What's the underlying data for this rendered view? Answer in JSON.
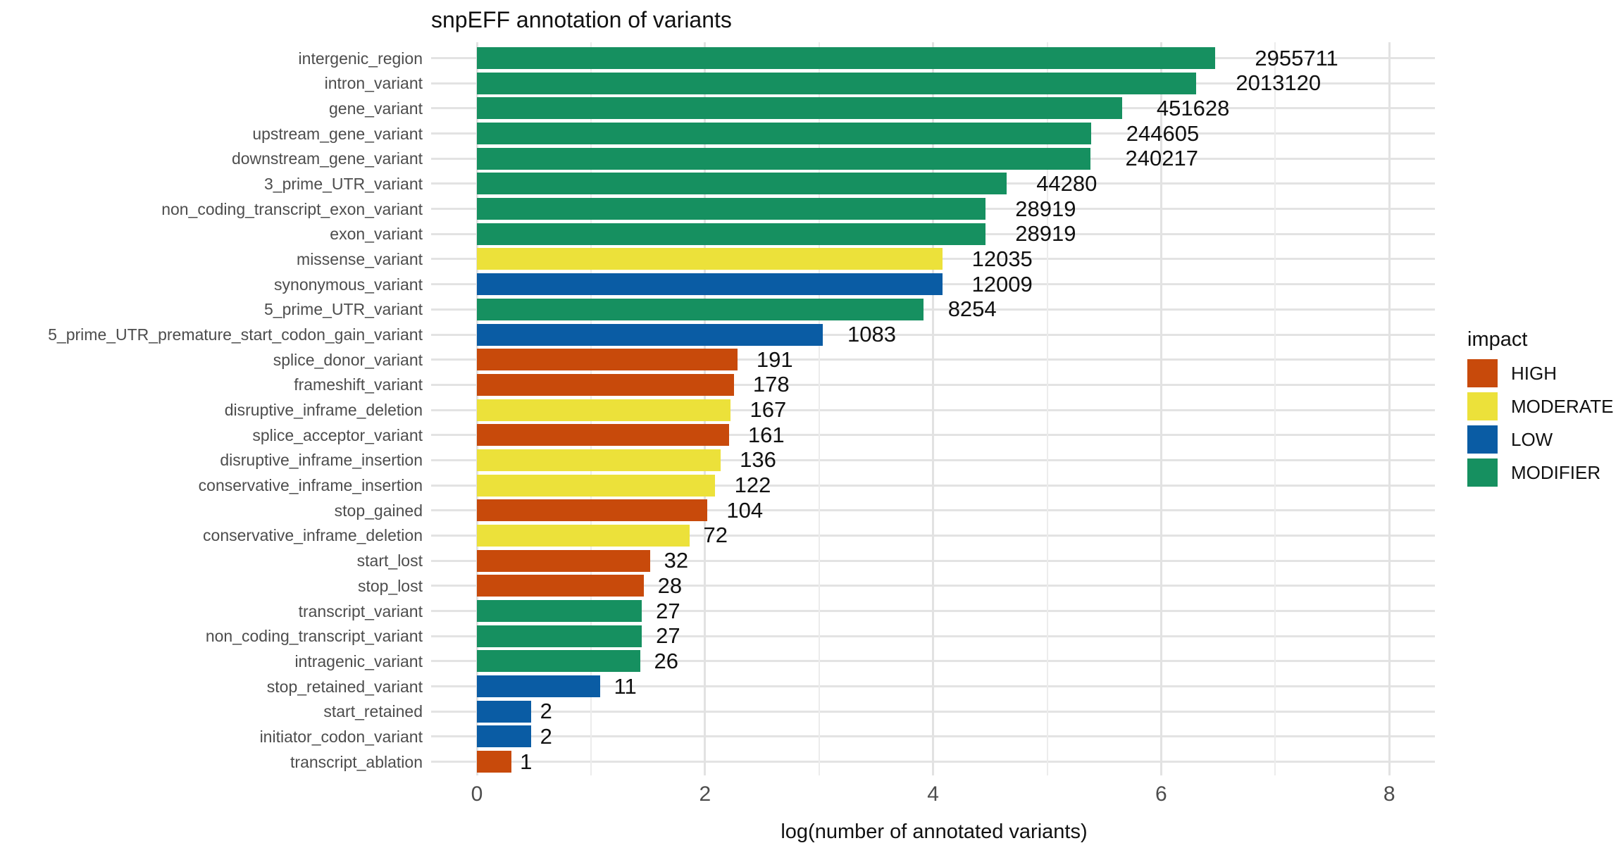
{
  "title": "snpEFF annotation of variants",
  "x_axis": {
    "label": "log(number of annotated variants)",
    "ticks": [
      0,
      2,
      4,
      6,
      8
    ],
    "minor_ticks": [
      1,
      3,
      5,
      7
    ]
  },
  "legend": {
    "title": "impact",
    "items": [
      {
        "label": "HIGH",
        "color": "#C84A0B"
      },
      {
        "label": "MODERATE",
        "color": "#ECE13A"
      },
      {
        "label": "LOW",
        "color": "#0A5CA4"
      },
      {
        "label": "MODIFIER",
        "color": "#169060"
      }
    ]
  },
  "impact_colors": {
    "HIGH": "#C84A0B",
    "MODERATE": "#ECE13A",
    "LOW": "#0A5CA4",
    "MODIFIER": "#169060"
  },
  "chart_data": {
    "type": "bar",
    "orientation": "horizontal",
    "title": "snpEFF annotation of variants",
    "xlabel": "log(number of annotated variants)",
    "xlim": [
      0,
      8.4
    ],
    "x_ticks": [
      0,
      2,
      4,
      6,
      8
    ],
    "grid": true,
    "legend_position": "right",
    "value_scale": "log10(count+1)",
    "bars": [
      {
        "label": "intergenic_region",
        "count": 2955711,
        "impact": "MODIFIER"
      },
      {
        "label": "intron_variant",
        "count": 2013120,
        "impact": "MODIFIER"
      },
      {
        "label": "gene_variant",
        "count": 451628,
        "impact": "MODIFIER"
      },
      {
        "label": "upstream_gene_variant",
        "count": 244605,
        "impact": "MODIFIER"
      },
      {
        "label": "downstream_gene_variant",
        "count": 240217,
        "impact": "MODIFIER"
      },
      {
        "label": "3_prime_UTR_variant",
        "count": 44280,
        "impact": "MODIFIER"
      },
      {
        "label": "non_coding_transcript_exon_variant",
        "count": 28919,
        "impact": "MODIFIER"
      },
      {
        "label": "exon_variant",
        "count": 28919,
        "impact": "MODIFIER"
      },
      {
        "label": "missense_variant",
        "count": 12035,
        "impact": "MODERATE"
      },
      {
        "label": "synonymous_variant",
        "count": 12009,
        "impact": "LOW"
      },
      {
        "label": "5_prime_UTR_variant",
        "count": 8254,
        "impact": "MODIFIER"
      },
      {
        "label": "5_prime_UTR_premature_start_codon_gain_variant",
        "count": 1083,
        "impact": "LOW"
      },
      {
        "label": "splice_donor_variant",
        "count": 191,
        "impact": "HIGH"
      },
      {
        "label": "frameshift_variant",
        "count": 178,
        "impact": "HIGH"
      },
      {
        "label": "disruptive_inframe_deletion",
        "count": 167,
        "impact": "MODERATE"
      },
      {
        "label": "splice_acceptor_variant",
        "count": 161,
        "impact": "HIGH"
      },
      {
        "label": "disruptive_inframe_insertion",
        "count": 136,
        "impact": "MODERATE"
      },
      {
        "label": "conservative_inframe_insertion",
        "count": 122,
        "impact": "MODERATE"
      },
      {
        "label": "stop_gained",
        "count": 104,
        "impact": "HIGH"
      },
      {
        "label": "conservative_inframe_deletion",
        "count": 72,
        "impact": "MODERATE"
      },
      {
        "label": "start_lost",
        "count": 32,
        "impact": "HIGH"
      },
      {
        "label": "stop_lost",
        "count": 28,
        "impact": "HIGH"
      },
      {
        "label": "transcript_variant",
        "count": 27,
        "impact": "MODIFIER"
      },
      {
        "label": "non_coding_transcript_variant",
        "count": 27,
        "impact": "MODIFIER"
      },
      {
        "label": "intragenic_variant",
        "count": 26,
        "impact": "MODIFIER"
      },
      {
        "label": "stop_retained_variant",
        "count": 11,
        "impact": "LOW"
      },
      {
        "label": "start_retained",
        "count": 2,
        "impact": "LOW"
      },
      {
        "label": "initiator_codon_variant",
        "count": 2,
        "impact": "LOW"
      },
      {
        "label": "transcript_ablation",
        "count": 1,
        "impact": "HIGH"
      }
    ]
  }
}
